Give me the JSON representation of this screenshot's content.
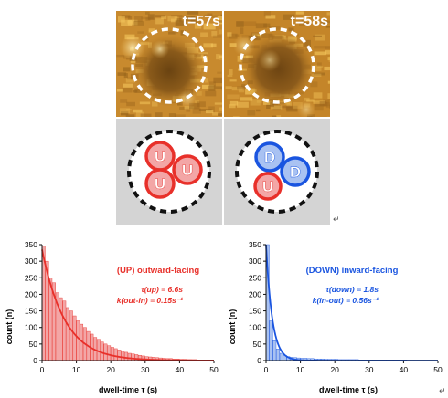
{
  "panels": {
    "top_left_time": "t=57s",
    "top_right_time": "t=58s",
    "left_subunits": [
      "U",
      "U",
      "U"
    ],
    "right_subunits": [
      "D",
      "D",
      "U"
    ],
    "return_mark": "↵"
  },
  "colors": {
    "up": "#e8302a",
    "up_light": "#f3a6a6",
    "down": "#1a55e0",
    "down_light": "#a9c2f2",
    "schematic_bg": "#d4d4d4"
  },
  "chart_data": [
    {
      "type": "bar",
      "overlay": "exponential-fit-line",
      "title": "(UP) outward-facing",
      "annotation_lines": [
        "τ(up) = 6.6s",
        "k(out-in) = 0.15s⁻¹"
      ],
      "xlabel": "dwell-time τ (s)",
      "ylabel": "count (n)",
      "xlim": [
        0,
        50
      ],
      "ylim": [
        0,
        350
      ],
      "xticks": [
        0,
        10,
        20,
        30,
        40,
        50
      ],
      "yticks": [
        0,
        50,
        100,
        150,
        200,
        250,
        300,
        350
      ],
      "bin_width": 1,
      "color": "#e8302a",
      "bins_x": [
        0.5,
        1.5,
        2.5,
        3.5,
        4.5,
        5.5,
        6.5,
        7.5,
        8.5,
        9.5,
        10.5,
        11.5,
        12.5,
        13.5,
        14.5,
        15.5,
        16.5,
        17.5,
        18.5,
        19.5,
        20.5,
        21.5,
        22.5,
        23.5,
        24.5,
        25.5,
        26.5,
        27.5,
        28.5,
        29.5,
        30.5,
        31.5,
        32.5,
        33.5,
        34.5,
        35.5,
        36.5,
        37.5,
        38.5,
        39.5,
        40.5,
        41.5,
        42.5,
        43.5,
        44.5,
        45.5,
        46.5,
        47.5,
        48.5,
        49.5
      ],
      "counts": [
        345,
        300,
        250,
        235,
        205,
        190,
        180,
        160,
        150,
        135,
        120,
        110,
        100,
        88,
        80,
        70,
        64,
        56,
        50,
        45,
        40,
        36,
        32,
        28,
        25,
        22,
        20,
        18,
        16,
        14,
        12,
        11,
        10,
        9,
        8,
        7,
        6,
        6,
        5,
        5,
        4,
        4,
        3,
        3,
        3,
        2,
        2,
        2,
        2,
        2
      ],
      "fit": {
        "A": 335,
        "tau": 6.6
      }
    },
    {
      "type": "bar",
      "overlay": "exponential-fit-line",
      "title": "(DOWN) inward-facing",
      "annotation_lines": [
        "τ(down) = 1.8s",
        "k(in-out) = 0.56s⁻¹"
      ],
      "xlabel": "dwell-time τ (s)",
      "ylabel": "count (n)",
      "xlim": [
        0,
        50
      ],
      "ylim": [
        0,
        350
      ],
      "xticks": [
        0,
        10,
        20,
        30,
        40,
        50
      ],
      "yticks": [
        0,
        50,
        100,
        150,
        200,
        250,
        300,
        350
      ],
      "bin_width": 1,
      "color": "#1a55e0",
      "bins_x": [
        0.5,
        1.5,
        2.5,
        3.5,
        4.5,
        5.5,
        6.5,
        7.5,
        8.5,
        9.5,
        10.5,
        11.5,
        12.5,
        13.5,
        14.5,
        15.5,
        16.5,
        17.5,
        18.5,
        19.5,
        20.5,
        21.5,
        22.5,
        23.5,
        24.5,
        25.5,
        26.5,
        27.5,
        28.5,
        29.5,
        30.5,
        31.5,
        32.5,
        33.5,
        34.5,
        35.5,
        36.5,
        37.5,
        38.5,
        39.5,
        40.5,
        41.5,
        42.5,
        43.5,
        44.5,
        45.5,
        46.5,
        47.5,
        48.5,
        49.5
      ],
      "counts": [
        350,
        120,
        60,
        35,
        22,
        16,
        12,
        10,
        9,
        8,
        7,
        7,
        6,
        6,
        5,
        5,
        5,
        4,
        4,
        4,
        4,
        3,
        3,
        3,
        3,
        3,
        3,
        2,
        2,
        2,
        2,
        2,
        2,
        2,
        2,
        2,
        2,
        2,
        2,
        2,
        2,
        1,
        1,
        1,
        1,
        1,
        1,
        1,
        1,
        1
      ],
      "fit": {
        "A": 350,
        "tau": 1.8
      }
    }
  ]
}
